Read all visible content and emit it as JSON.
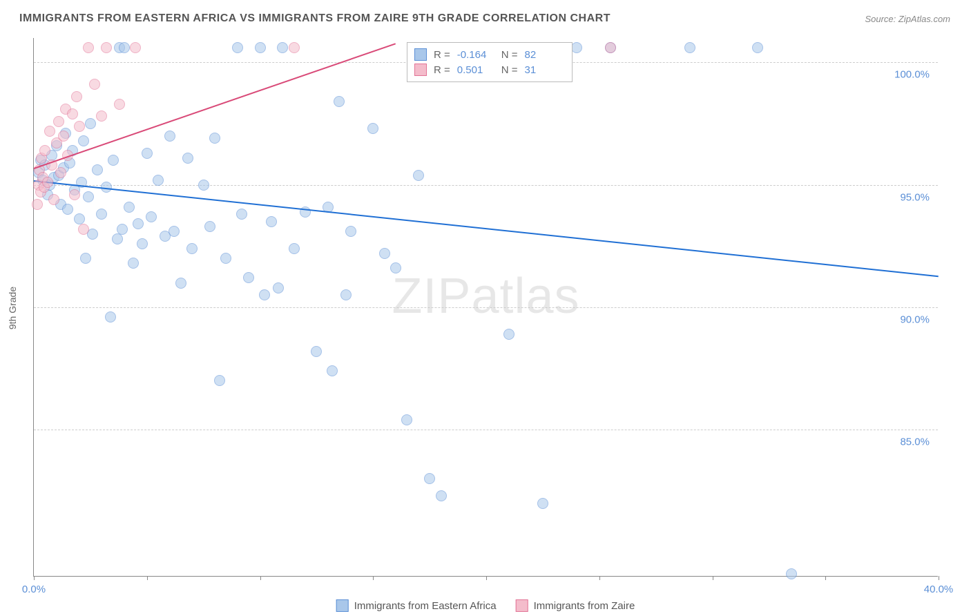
{
  "title": "IMMIGRANTS FROM EASTERN AFRICA VS IMMIGRANTS FROM ZAIRE 9TH GRADE CORRELATION CHART",
  "source": "Source: ZipAtlas.com",
  "watermark_a": "ZIP",
  "watermark_b": "atlas",
  "yaxis_title": "9th Grade",
  "chart": {
    "type": "scatter",
    "xlim": [
      0,
      40
    ],
    "ylim": [
      79,
      101
    ],
    "yticks": [
      85,
      90,
      95,
      100
    ],
    "ytick_labels": [
      "85.0%",
      "90.0%",
      "95.0%",
      "100.0%"
    ],
    "xticks_minor": [
      0,
      5,
      10,
      15,
      20,
      25,
      30,
      35,
      40
    ],
    "x_left_label": "0.0%",
    "x_right_label": "40.0%",
    "grid_color": "#cccccc",
    "axis_color": "#888888",
    "background_color": "#ffffff",
    "point_radius": 8,
    "point_opacity": 0.55
  },
  "series": [
    {
      "name": "Immigrants from Eastern Africa",
      "color_fill": "#a9c7ea",
      "color_stroke": "#5b8fd6",
      "trend_color": "#1f6fd4",
      "R": "-0.164",
      "N": "82",
      "trend": {
        "x1": 0,
        "y1": 95.2,
        "x2": 40,
        "y2": 91.3
      },
      "points": [
        [
          0.2,
          95.5
        ],
        [
          0.3,
          96.0
        ],
        [
          0.4,
          95.2
        ],
        [
          0.5,
          95.8
        ],
        [
          0.6,
          94.6
        ],
        [
          0.7,
          95.0
        ],
        [
          0.8,
          96.2
        ],
        [
          0.9,
          95.3
        ],
        [
          1.0,
          96.6
        ],
        [
          1.1,
          95.4
        ],
        [
          1.2,
          94.2
        ],
        [
          1.3,
          95.7
        ],
        [
          1.4,
          97.1
        ],
        [
          1.5,
          94.0
        ],
        [
          1.6,
          95.9
        ],
        [
          1.7,
          96.4
        ],
        [
          1.8,
          94.8
        ],
        [
          2.0,
          93.6
        ],
        [
          2.1,
          95.1
        ],
        [
          2.2,
          96.8
        ],
        [
          2.3,
          92.0
        ],
        [
          2.4,
          94.5
        ],
        [
          2.5,
          97.5
        ],
        [
          2.6,
          93.0
        ],
        [
          2.8,
          95.6
        ],
        [
          3.0,
          93.8
        ],
        [
          3.2,
          94.9
        ],
        [
          3.4,
          89.6
        ],
        [
          3.5,
          96.0
        ],
        [
          3.7,
          92.8
        ],
        [
          3.8,
          100.6
        ],
        [
          3.9,
          93.2
        ],
        [
          4.0,
          100.6
        ],
        [
          4.2,
          94.1
        ],
        [
          4.4,
          91.8
        ],
        [
          4.6,
          93.4
        ],
        [
          4.8,
          92.6
        ],
        [
          5.0,
          96.3
        ],
        [
          5.2,
          93.7
        ],
        [
          5.5,
          95.2
        ],
        [
          5.8,
          92.9
        ],
        [
          6.0,
          97.0
        ],
        [
          6.2,
          93.1
        ],
        [
          6.5,
          91.0
        ],
        [
          6.8,
          96.1
        ],
        [
          7.0,
          92.4
        ],
        [
          7.5,
          95.0
        ],
        [
          7.8,
          93.3
        ],
        [
          8.0,
          96.9
        ],
        [
          8.2,
          87.0
        ],
        [
          8.5,
          92.0
        ],
        [
          9.0,
          100.6
        ],
        [
          9.2,
          93.8
        ],
        [
          9.5,
          91.2
        ],
        [
          10.0,
          100.6
        ],
        [
          10.2,
          90.5
        ],
        [
          10.5,
          93.5
        ],
        [
          10.8,
          90.8
        ],
        [
          11.0,
          100.6
        ],
        [
          11.5,
          92.4
        ],
        [
          12.0,
          93.9
        ],
        [
          12.5,
          88.2
        ],
        [
          13.0,
          94.1
        ],
        [
          13.2,
          87.4
        ],
        [
          13.5,
          98.4
        ],
        [
          13.8,
          90.5
        ],
        [
          14.0,
          93.1
        ],
        [
          15.0,
          97.3
        ],
        [
          15.5,
          92.2
        ],
        [
          16.0,
          91.6
        ],
        [
          16.5,
          85.4
        ],
        [
          17.0,
          95.4
        ],
        [
          17.5,
          83.0
        ],
        [
          18.0,
          82.3
        ],
        [
          19.5,
          100.6
        ],
        [
          21.0,
          88.9
        ],
        [
          22.5,
          82.0
        ],
        [
          24.0,
          100.6
        ],
        [
          25.5,
          100.6
        ],
        [
          29.0,
          100.6
        ],
        [
          32.0,
          100.6
        ],
        [
          33.5,
          79.1
        ]
      ]
    },
    {
      "name": "Immigrants from Zaire",
      "color_fill": "#f4bccb",
      "color_stroke": "#e27396",
      "trend_color": "#d94a78",
      "R": "0.501",
      "N": "31",
      "trend": {
        "x1": 0,
        "y1": 95.7,
        "x2": 16,
        "y2": 100.8
      },
      "points": [
        [
          0.15,
          94.2
        ],
        [
          0.2,
          95.0
        ],
        [
          0.25,
          95.6
        ],
        [
          0.3,
          94.7
        ],
        [
          0.35,
          96.1
        ],
        [
          0.4,
          95.3
        ],
        [
          0.45,
          94.9
        ],
        [
          0.5,
          96.4
        ],
        [
          0.6,
          95.1
        ],
        [
          0.7,
          97.2
        ],
        [
          0.8,
          95.8
        ],
        [
          0.9,
          94.4
        ],
        [
          1.0,
          96.7
        ],
        [
          1.1,
          97.6
        ],
        [
          1.2,
          95.5
        ],
        [
          1.3,
          97.0
        ],
        [
          1.4,
          98.1
        ],
        [
          1.5,
          96.2
        ],
        [
          1.7,
          97.9
        ],
        [
          1.8,
          94.6
        ],
        [
          1.9,
          98.6
        ],
        [
          2.0,
          97.4
        ],
        [
          2.2,
          93.2
        ],
        [
          2.4,
          100.6
        ],
        [
          2.7,
          99.1
        ],
        [
          3.0,
          97.8
        ],
        [
          3.2,
          100.6
        ],
        [
          3.8,
          98.3
        ],
        [
          4.5,
          100.6
        ],
        [
          11.5,
          100.6
        ],
        [
          25.5,
          100.6
        ]
      ]
    }
  ],
  "stats_box": {
    "r_label": "R =",
    "n_label": "N ="
  },
  "legend": {
    "items": [
      {
        "label": "Immigrants from Eastern Africa",
        "fill": "#a9c7ea",
        "stroke": "#5b8fd6"
      },
      {
        "label": "Immigrants from Zaire",
        "fill": "#f4bccb",
        "stroke": "#e27396"
      }
    ]
  }
}
